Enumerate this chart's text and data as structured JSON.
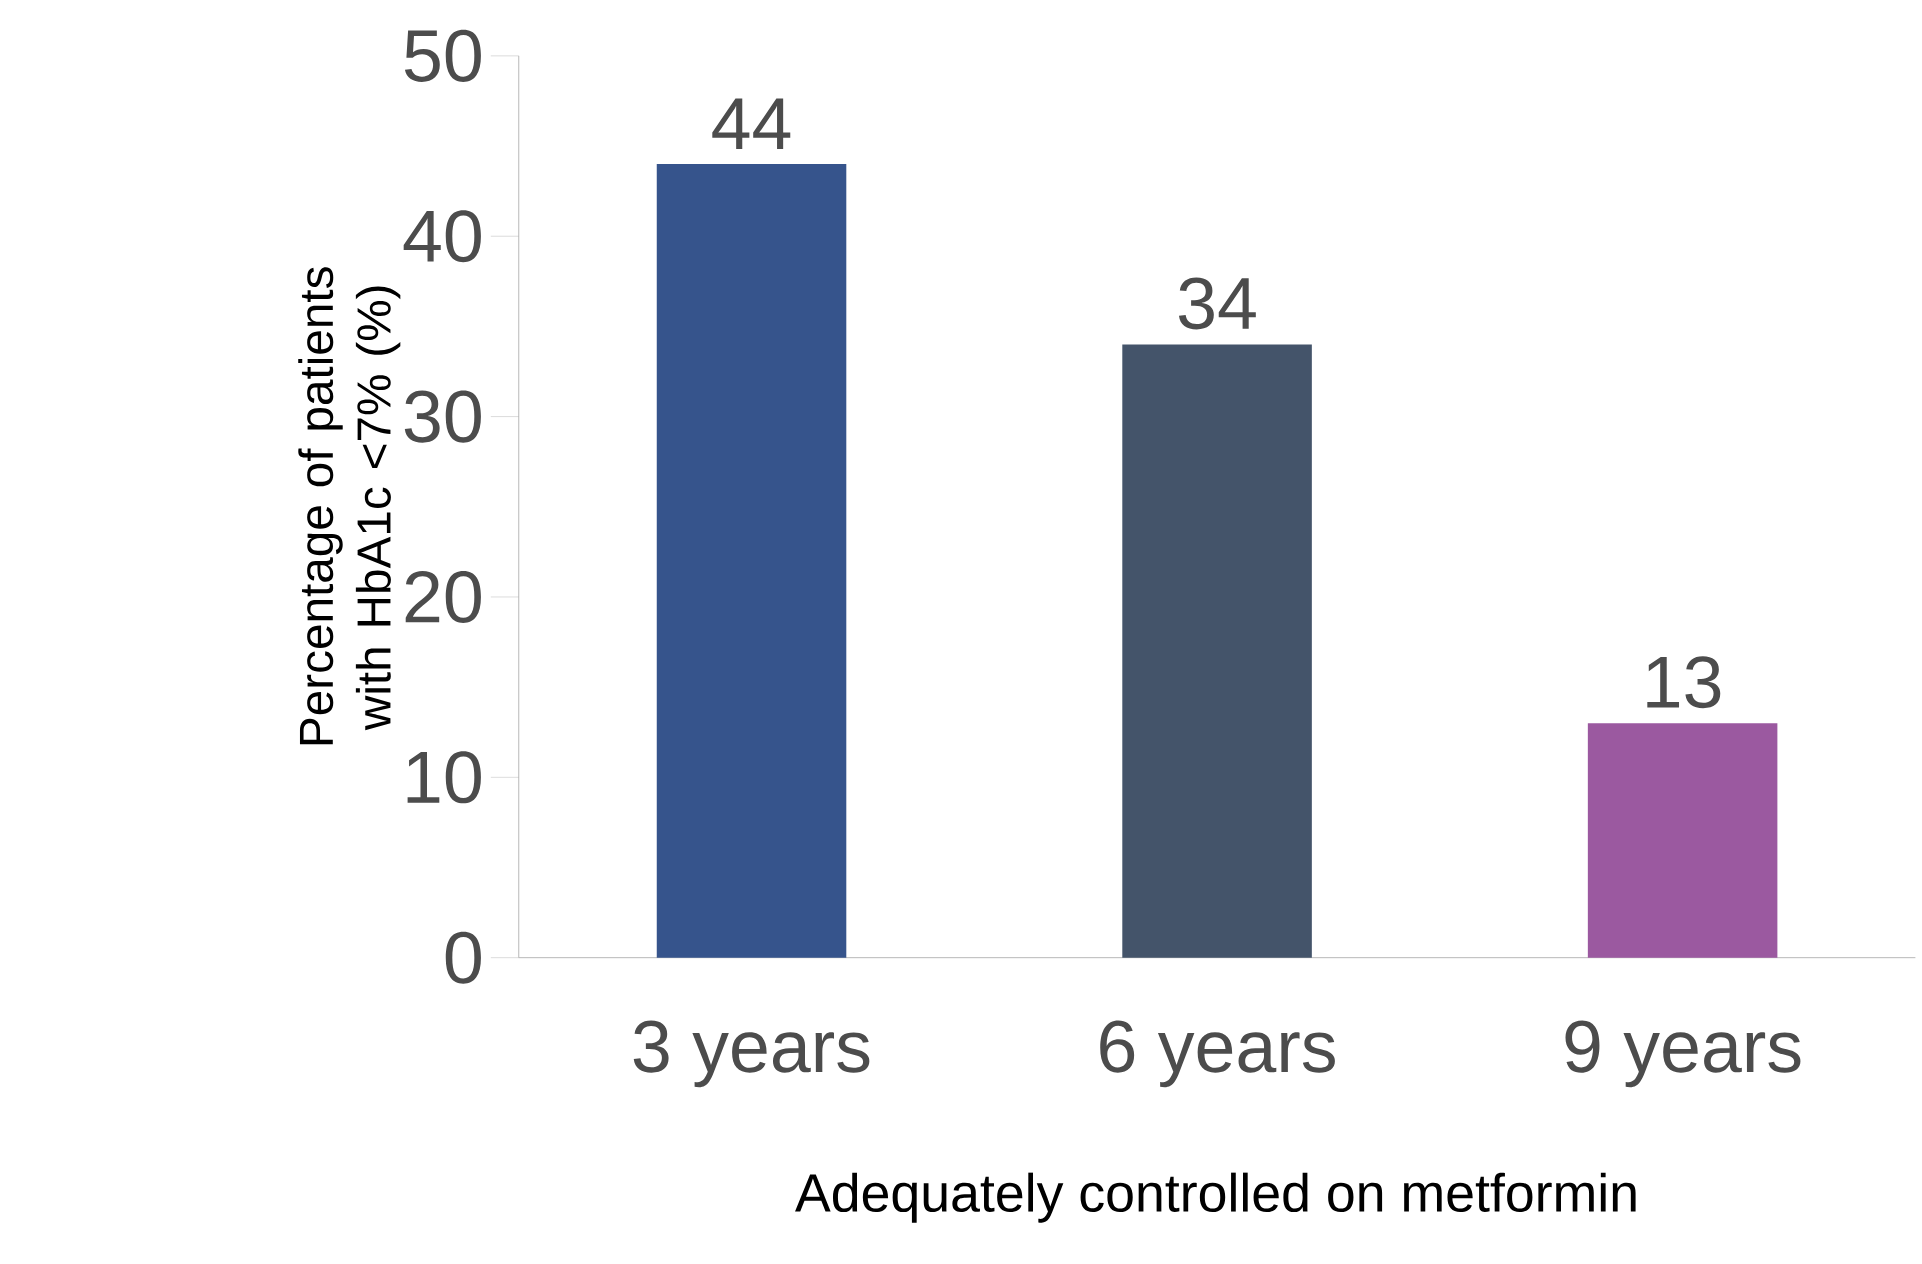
{
  "chart_data": {
    "type": "bar",
    "xlabel": "Adequately controlled on metformin",
    "ylabel": "Percentage of patients with HbA1c <7% (%)",
    "categories": [
      "3 years",
      "6 years",
      "9 years"
    ],
    "values": [
      44,
      34,
      13
    ],
    "colors": [
      "#36548c",
      "#44546a",
      "#9b59a0"
    ],
    "ylim": [
      0,
      50
    ],
    "yticks": [
      0,
      10,
      20,
      30,
      40,
      50
    ],
    "data_labels": true,
    "grid": false
  }
}
